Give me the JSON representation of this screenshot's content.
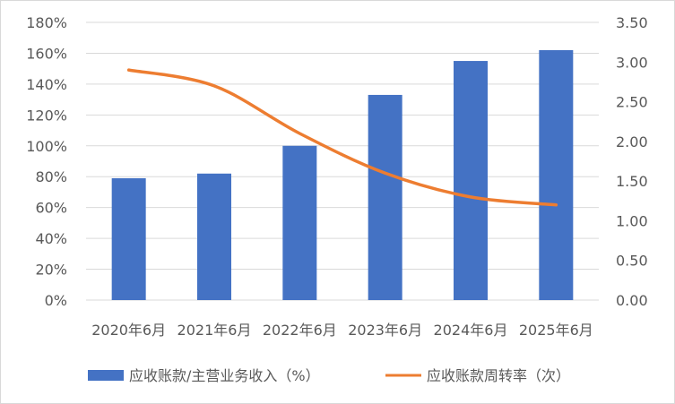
{
  "chart_data": {
    "type": "bar",
    "categories": [
      "2020年6月",
      "2021年6月",
      "2022年6月",
      "2023年6月",
      "2024年6月",
      "2025年6月"
    ],
    "series": [
      {
        "name": "应收账款/主营业务收入（%）",
        "type": "bar",
        "axis": "left",
        "color": "#4472C4",
        "values": [
          79,
          82,
          100,
          133,
          155,
          162
        ]
      },
      {
        "name": "应收账款周转率（次）",
        "type": "line",
        "axis": "right",
        "color": "#ED7D31",
        "values": [
          2.9,
          2.7,
          2.1,
          1.6,
          1.3,
          1.2
        ]
      }
    ],
    "y_left": {
      "min": 0,
      "max": 180,
      "step": 20,
      "ticks": [
        "0%",
        "20%",
        "40%",
        "60%",
        "80%",
        "100%",
        "120%",
        "140%",
        "160%",
        "180%"
      ]
    },
    "y_right": {
      "min": 0,
      "max": 3.5,
      "step": 0.5,
      "ticks": [
        "0.00",
        "0.50",
        "1.00",
        "1.50",
        "2.00",
        "2.50",
        "3.00",
        "3.50"
      ]
    },
    "grid": true,
    "legend_position": "bottom",
    "grid_color": "#d9d9d9"
  }
}
